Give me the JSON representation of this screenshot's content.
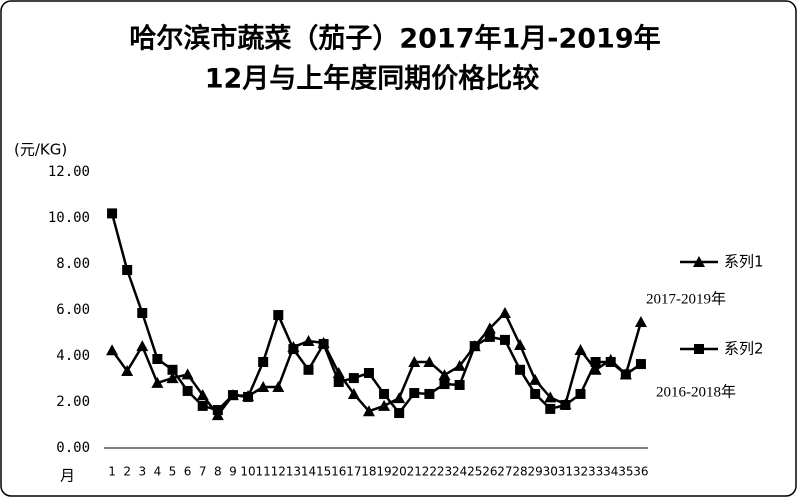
{
  "chart_data": {
    "type": "line",
    "title": [
      "哈尔滨市蔬菜（茄子）2017年1月-2019年",
      "12月与上年度同期价格比较"
    ],
    "y_label": "(元/KG)",
    "x_label": "月",
    "categories": [
      "1",
      "2",
      "3",
      "4",
      "5",
      "6",
      "7",
      "8",
      "9",
      "10",
      "11",
      "12",
      "13",
      "14",
      "15",
      "16",
      "17",
      "18",
      "19",
      "20",
      "21",
      "22",
      "23",
      "24",
      "25",
      "26",
      "27",
      "28",
      "29",
      "30",
      "31",
      "32",
      "33",
      "34",
      "35",
      "36"
    ],
    "series": [
      {
        "name": "系列1",
        "color": "#000000",
        "marker": "triangle",
        "annotation": "2017-2019年",
        "values": [
          4.25,
          3.35,
          4.43,
          2.83,
          3.04,
          3.2,
          2.3,
          1.43,
          2.3,
          2.26,
          2.65,
          2.65,
          4.39,
          4.65,
          4.57,
          3.26,
          2.35,
          1.6,
          1.83,
          2.17,
          3.74,
          3.74,
          3.17,
          3.57,
          4.43,
          5.2,
          5.87,
          4.48,
          2.96,
          2.2,
          1.9,
          4.26,
          3.4,
          3.83,
          3.2,
          5.48
        ]
      },
      {
        "name": "系列2",
        "color": "#000000",
        "marker": "square",
        "annotation": "2016-2018年",
        "values": [
          10.2,
          7.74,
          5.87,
          3.87,
          3.4,
          2.48,
          1.83,
          1.65,
          2.3,
          2.22,
          3.74,
          5.78,
          4.3,
          3.4,
          4.52,
          2.87,
          3.04,
          3.26,
          2.35,
          1.52,
          2.39,
          2.35,
          2.78,
          2.74,
          4.43,
          4.83,
          4.7,
          3.4,
          2.35,
          1.7,
          1.87,
          2.35,
          3.74,
          3.74,
          3.2,
          3.65
        ]
      }
    ],
    "ylim": [
      0,
      12
    ],
    "yticks": [
      {
        "value": 0,
        "label": "0.00"
      },
      {
        "value": 2,
        "label": "2.00"
      },
      {
        "value": 4,
        "label": "4.00"
      },
      {
        "value": 6,
        "label": "6.00"
      },
      {
        "value": 8,
        "label": "8.00"
      },
      {
        "value": 10,
        "label": "10.00"
      },
      {
        "value": 12,
        "label": "12.00"
      }
    ],
    "grid": false
  }
}
